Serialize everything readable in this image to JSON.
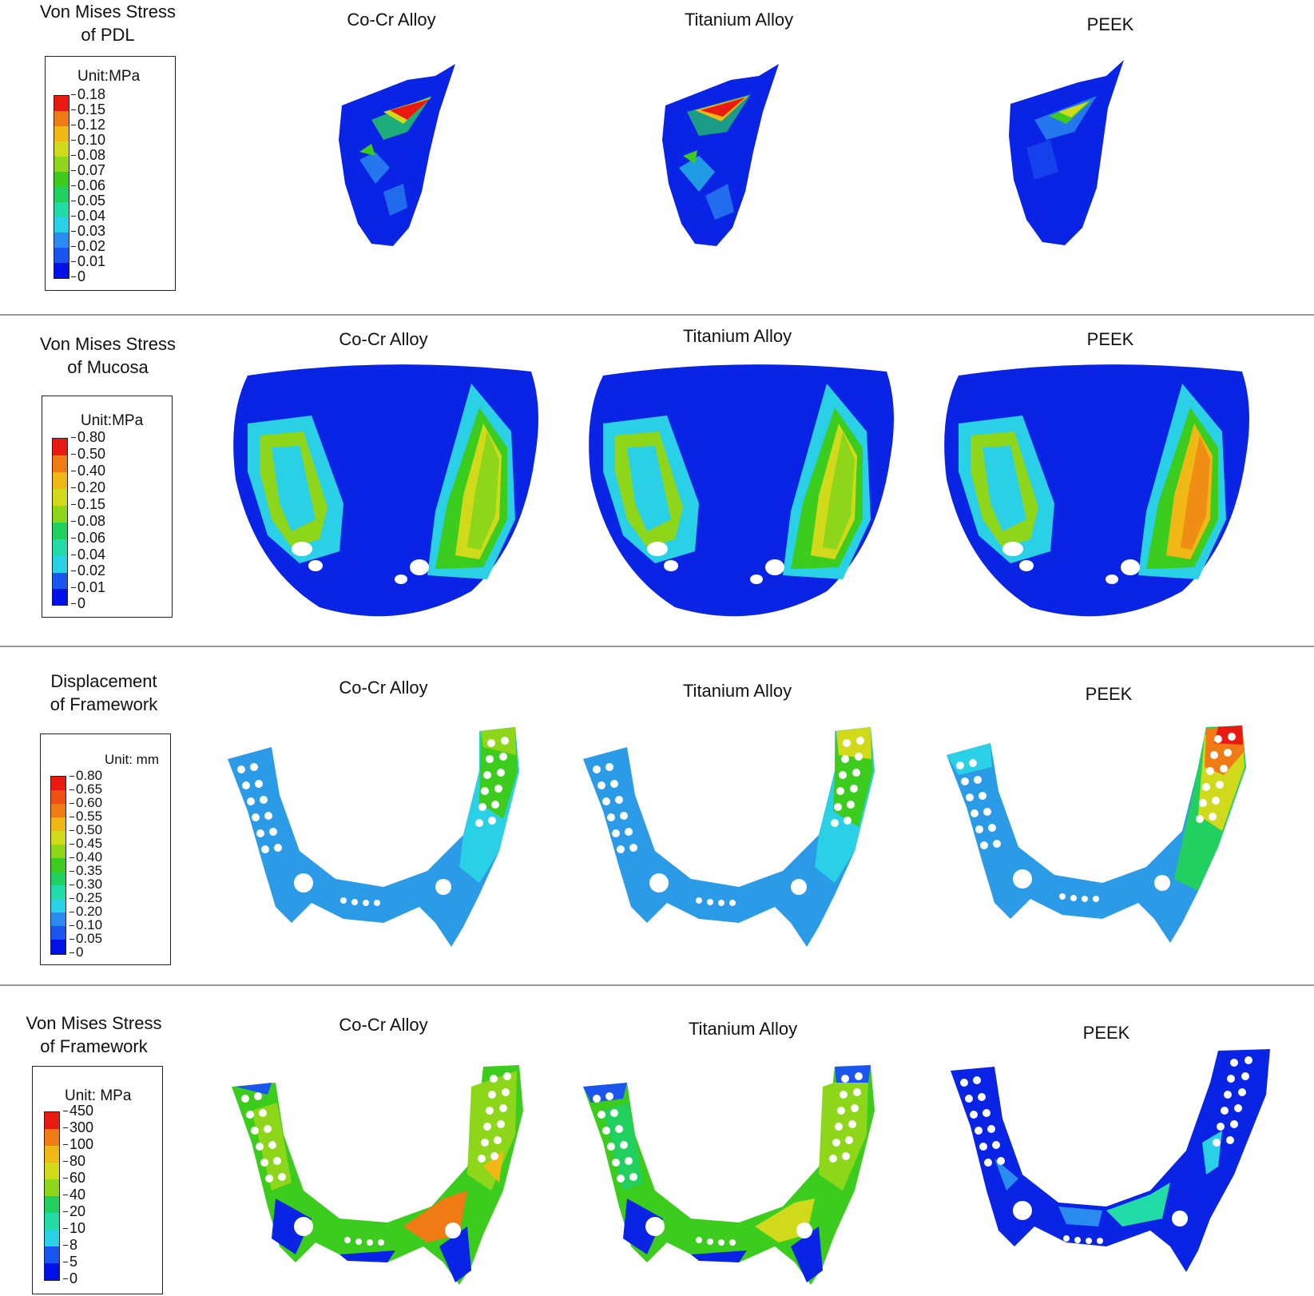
{
  "colors": {
    "scale": [
      "#0010e8",
      "#1a55f0",
      "#2a8cf0",
      "#2ad0e6",
      "#22dca8",
      "#22d060",
      "#3ccc1e",
      "#8ed61a",
      "#d0da1a",
      "#f0b814",
      "#f07a14",
      "#e81a12"
    ],
    "base_blue": "#0a24e6",
    "light_blue": "#2b9be8",
    "divider": "#9a9a9a"
  },
  "rows": [
    {
      "title_lines": [
        "Von Mises Stress",
        "of PDL"
      ],
      "legend": {
        "unit": "Unit:MPa",
        "ticks": [
          "0.18",
          "0.15",
          "0.12",
          "0.10",
          "0.08",
          "0.07",
          "0.06",
          "0.05",
          "0.04",
          "0.03",
          "0.02",
          "0.01",
          "0"
        ]
      },
      "columns": [
        "Co-Cr Alloy",
        "Titanium Alloy",
        "PEEK"
      ]
    },
    {
      "title_lines": [
        "Von Mises Stress",
        "of Mucosa"
      ],
      "legend": {
        "unit": "Unit:MPa",
        "ticks": [
          "0.80",
          "0.50",
          "0.40",
          "0.20",
          "0.15",
          "0.08",
          "0.06",
          "0.04",
          "0.02",
          "0.01",
          "0"
        ]
      },
      "columns": [
        "Co-Cr Alloy",
        "Titanium Alloy",
        "PEEK"
      ]
    },
    {
      "title_lines": [
        "Displacement",
        "of Framework"
      ],
      "legend": {
        "unit": "Unit: mm",
        "ticks": [
          "0.80",
          "0.65",
          "0.60",
          "0.55",
          "0.50",
          "0.45",
          "0.40",
          "0.35",
          "0.30",
          "0.25",
          "0.20",
          "0.10",
          "0.05",
          "0"
        ]
      },
      "columns": [
        "Co-Cr Alloy",
        "Titanium Alloy",
        "PEEK"
      ]
    },
    {
      "title_lines": [
        "Von Mises Stress",
        "of Framework"
      ],
      "legend": {
        "unit": "Unit: MPa",
        "ticks": [
          "450",
          "300",
          "100",
          "80",
          "60",
          "40",
          "20",
          "10",
          "8",
          "5",
          "0"
        ]
      },
      "columns": [
        "Co-Cr Alloy",
        "Titanium Alloy",
        "PEEK"
      ]
    }
  ]
}
